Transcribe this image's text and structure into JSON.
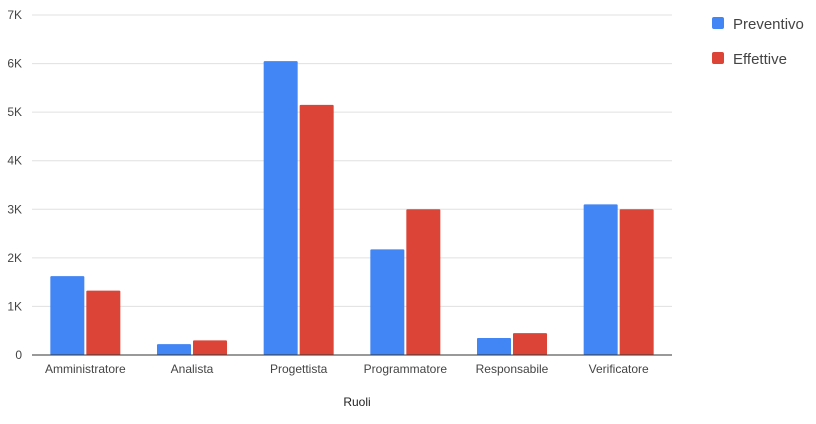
{
  "chart_data": {
    "type": "bar",
    "title": "",
    "xlabel": "Ruoli",
    "ylabel": "",
    "categories": [
      "Amministratore",
      "Analista",
      "Progettista",
      "Programmatore",
      "Responsabile",
      "Verificatore"
    ],
    "series": [
      {
        "name": "Preventivo",
        "color": "#4285f4",
        "values": [
          1625,
          225,
          6050,
          2175,
          350,
          3100
        ]
      },
      {
        "name": "Effettive",
        "color": "#db4437",
        "values": [
          1325,
          300,
          5150,
          3000,
          450,
          3000
        ]
      }
    ],
    "ylim": [
      0,
      7000
    ],
    "yticks": [
      {
        "value": 0,
        "label": "0"
      },
      {
        "value": 1000,
        "label": "1K"
      },
      {
        "value": 2000,
        "label": "2K"
      },
      {
        "value": 3000,
        "label": "3K"
      },
      {
        "value": 4000,
        "label": "4K"
      },
      {
        "value": 5000,
        "label": "5K"
      },
      {
        "value": 6000,
        "label": "6K"
      },
      {
        "value": 7000,
        "label": "7K"
      }
    ],
    "grid": true,
    "legend": "top-right"
  }
}
